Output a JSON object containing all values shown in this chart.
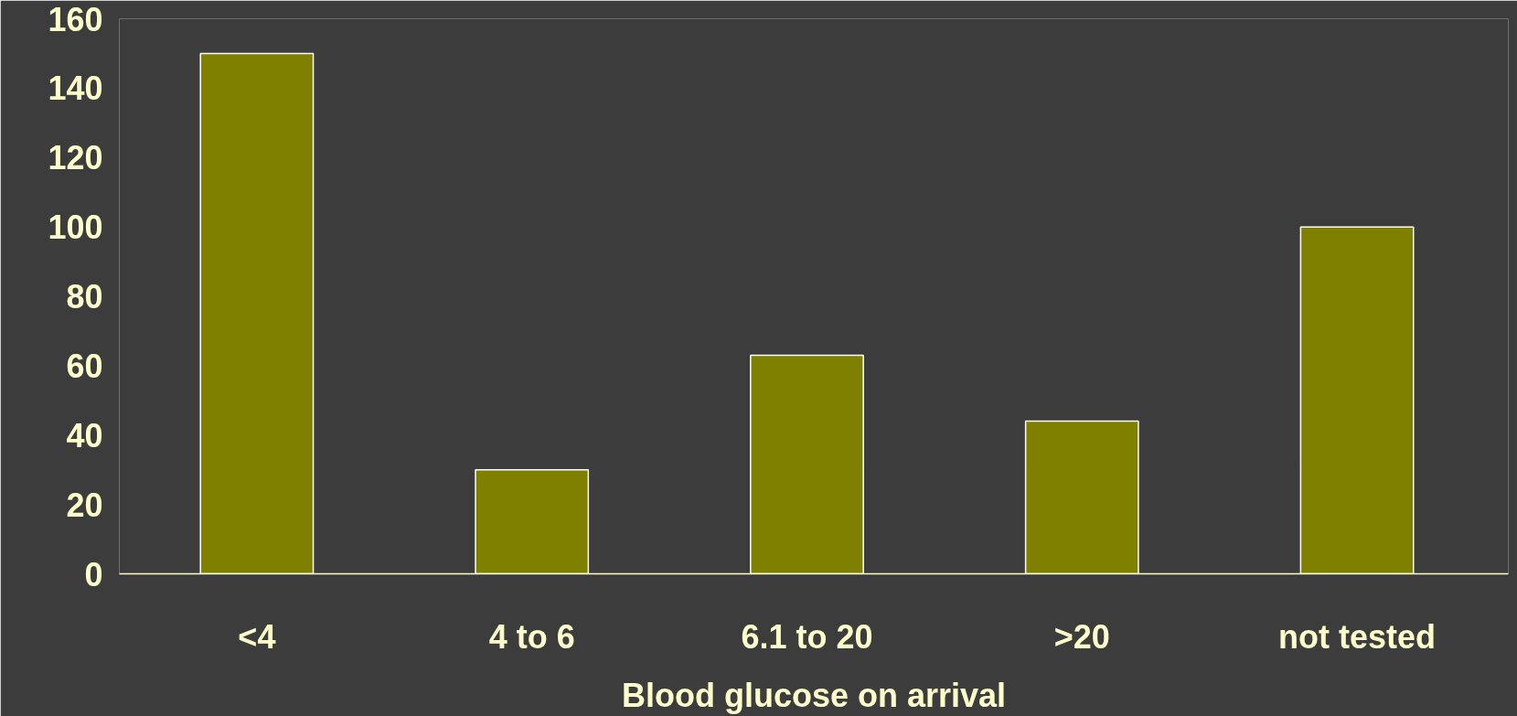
{
  "chart_data": {
    "type": "bar",
    "xlabel": "Blood glucose on arrival",
    "categories": [
      "<4",
      "4 to 6",
      "6.1 to 20",
      ">20",
      "not tested"
    ],
    "values": [
      150,
      30,
      63,
      44,
      100
    ],
    "color": "#808000",
    "ylim": [
      0,
      160
    ],
    "yticks": [
      0,
      20,
      40,
      60,
      80,
      100,
      120,
      140,
      160
    ],
    "grid": false
  }
}
